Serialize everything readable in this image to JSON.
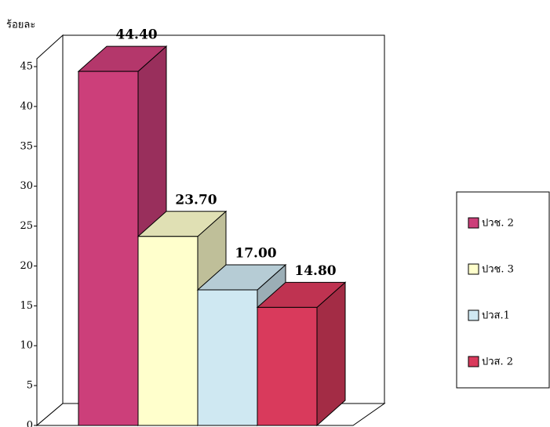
{
  "chart_data": {
    "type": "bar3d",
    "y_label": "ร้อยละ",
    "series": [
      {
        "name": "ปวช. 2",
        "color": "#cc3f7a",
        "values": [
          44.4
        ],
        "value_labels": [
          "44.40"
        ]
      },
      {
        "name": "ปวช. 3",
        "color": "#ffffcc",
        "values": [
          23.7
        ],
        "value_labels": [
          "23.70"
        ]
      },
      {
        "name": "ปวส.1",
        "color": "#cfe8f2",
        "values": [
          17
        ],
        "value_labels": [
          "17.00"
        ]
      },
      {
        "name": "ปวส. 2",
        "color": "#d93a5c",
        "values": [
          14.8
        ],
        "value_labels": [
          "14.80"
        ]
      }
    ],
    "ylim": [
      0,
      45
    ],
    "yticks": [
      0,
      5,
      10,
      15,
      20,
      25,
      30,
      35,
      40,
      45
    ],
    "legend": "right"
  }
}
